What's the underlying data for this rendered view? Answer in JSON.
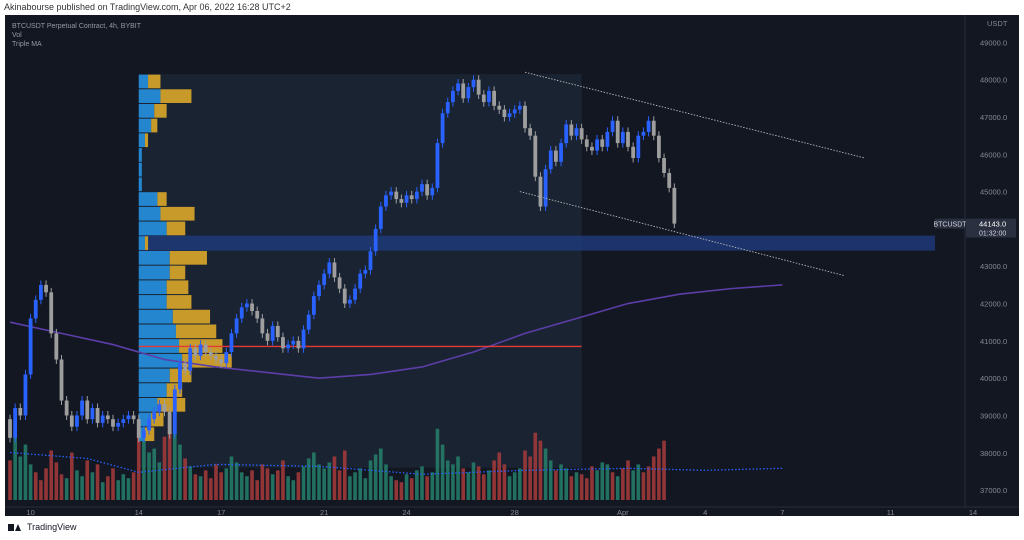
{
  "published_by": "Akinabourse published on TradingView.com, Apr 06, 2022 16:28 UTC+2",
  "legend": {
    "symbol_line": "BTCUSDT Perpetual Contract, 4h, BYBIT",
    "vol_label": "Vol",
    "ma_label": "Triple MA"
  },
  "footer": {
    "brand": "TradingView"
  },
  "colors": {
    "background": "#131722",
    "bull": "#2962ff",
    "bear": "#9e9e9e",
    "vol_up": "#26806b",
    "vol_down": "#a83b3b",
    "profile_up": "#2586d0",
    "profile_down": "#c79a2a",
    "poc_line": "#e53935",
    "ma_slow": "#5c3ea8",
    "ma_vol": "#2962ff",
    "zone": "#1e3a78",
    "channel": "#b8b8b8",
    "price_tag": "#2b3040",
    "axis_text": "#868993"
  },
  "chart_data": {
    "type": "candlestick",
    "symbol": "BTCUSDT",
    "timeframe": "4h",
    "exchange": "BYBIT",
    "y_axis": {
      "unit": "USDT",
      "ylim": [
        36600,
        49600
      ],
      "ticks": [
        "37000.0",
        "38000.0",
        "39000.0",
        "40000.0",
        "41000.0",
        "42000.0",
        "43000.0",
        "44000.0",
        "45000.0",
        "46000.0",
        "47000.0",
        "48000.0",
        "49000.0"
      ]
    },
    "x_axis": {
      "ticks": [
        {
          "label": "10",
          "bar": 4
        },
        {
          "label": "14",
          "bar": 25
        },
        {
          "label": "17",
          "bar": 41
        },
        {
          "label": "21",
          "bar": 61
        },
        {
          "label": "24",
          "bar": 77
        },
        {
          "label": "28",
          "bar": 98
        },
        {
          "label": "Apr",
          "bar": 119
        },
        {
          "label": "4",
          "bar": 135
        },
        {
          "label": "7",
          "bar": 150
        },
        {
          "label": "11",
          "bar": 171
        },
        {
          "label": "14",
          "bar": 187
        }
      ]
    },
    "candle_closes": [
      38400,
      39200,
      39000,
      40100,
      41600,
      42100,
      42500,
      42300,
      41200,
      40500,
      39400,
      39000,
      38700,
      39000,
      39400,
      38900,
      39200,
      38800,
      39000,
      38900,
      38700,
      38800,
      38900,
      39000,
      38900,
      38400,
      38600,
      38900,
      39100,
      39300,
      39100,
      38500,
      39700,
      40400,
      40200,
      40800,
      40600,
      40900,
      40700,
      40600,
      40500,
      40400,
      40700,
      41200,
      41600,
      41900,
      42000,
      41800,
      41600,
      41200,
      41000,
      41400,
      41100,
      40800,
      40900,
      41000,
      40800,
      41300,
      41700,
      42200,
      42500,
      42800,
      43100,
      42700,
      42400,
      42000,
      42100,
      42400,
      42800,
      42900,
      43400,
      44000,
      44600,
      44900,
      45000,
      44800,
      44700,
      44900,
      44800,
      45000,
      45200,
      44900,
      45100,
      46300,
      47100,
      47400,
      47700,
      47900,
      47500,
      47800,
      48000,
      47600,
      47400,
      47700,
      47300,
      47200,
      47000,
      47100,
      47200,
      47300,
      46700,
      46500,
      45400,
      44600,
      45600,
      46100,
      45800,
      46300,
      46800,
      46500,
      46700,
      46400,
      46200,
      46100,
      46400,
      46200,
      46600,
      46900,
      46300,
      46600,
      46200,
      45900,
      46500,
      46600,
      46900,
      46500,
      45900,
      45500,
      45100,
      44143
    ],
    "first_candle_open": 38900,
    "volume_max": 48,
    "volume": [
      {
        "v": 20,
        "up": false
      },
      {
        "v": 35,
        "up": true
      },
      {
        "v": 22,
        "up": true
      },
      {
        "v": 28,
        "up": true
      },
      {
        "v": 18,
        "up": true
      },
      {
        "v": 14,
        "up": false
      },
      {
        "v": 10,
        "up": false
      },
      {
        "v": 16,
        "up": false
      },
      {
        "v": 25,
        "up": false
      },
      {
        "v": 19,
        "up": false
      },
      {
        "v": 13,
        "up": false
      },
      {
        "v": 11,
        "up": true
      },
      {
        "v": 24,
        "up": false
      },
      {
        "v": 15,
        "up": true
      },
      {
        "v": 12,
        "up": true
      },
      {
        "v": 20,
        "up": false
      },
      {
        "v": 14,
        "up": true
      },
      {
        "v": 18,
        "up": false
      },
      {
        "v": 9,
        "up": true
      },
      {
        "v": 12,
        "up": false
      },
      {
        "v": 16,
        "up": false
      },
      {
        "v": 10,
        "up": true
      },
      {
        "v": 13,
        "up": true
      },
      {
        "v": 11,
        "up": true
      },
      {
        "v": 14,
        "up": false
      },
      {
        "v": 38,
        "up": false
      },
      {
        "v": 30,
        "up": true
      },
      {
        "v": 24,
        "up": true
      },
      {
        "v": 26,
        "up": true
      },
      {
        "v": 19,
        "up": true
      },
      {
        "v": 32,
        "up": false
      },
      {
        "v": 40,
        "up": false
      },
      {
        "v": 44,
        "up": true
      },
      {
        "v": 28,
        "up": true
      },
      {
        "v": 21,
        "up": false
      },
      {
        "v": 17,
        "up": true
      },
      {
        "v": 13,
        "up": false
      },
      {
        "v": 12,
        "up": true
      },
      {
        "v": 15,
        "up": false
      },
      {
        "v": 11,
        "up": false
      },
      {
        "v": 18,
        "up": false
      },
      {
        "v": 14,
        "up": false
      },
      {
        "v": 16,
        "up": true
      },
      {
        "v": 22,
        "up": true
      },
      {
        "v": 19,
        "up": true
      },
      {
        "v": 14,
        "up": true
      },
      {
        "v": 12,
        "up": true
      },
      {
        "v": 15,
        "up": false
      },
      {
        "v": 10,
        "up": false
      },
      {
        "v": 18,
        "up": false
      },
      {
        "v": 16,
        "up": false
      },
      {
        "v": 13,
        "up": true
      },
      {
        "v": 15,
        "up": false
      },
      {
        "v": 20,
        "up": false
      },
      {
        "v": 12,
        "up": true
      },
      {
        "v": 10,
        "up": true
      },
      {
        "v": 14,
        "up": false
      },
      {
        "v": 17,
        "up": true
      },
      {
        "v": 21,
        "up": true
      },
      {
        "v": 24,
        "up": true
      },
      {
        "v": 18,
        "up": true
      },
      {
        "v": 16,
        "up": true
      },
      {
        "v": 19,
        "up": true
      },
      {
        "v": 22,
        "up": false
      },
      {
        "v": 15,
        "up": false
      },
      {
        "v": 25,
        "up": false
      },
      {
        "v": 12,
        "up": true
      },
      {
        "v": 14,
        "up": true
      },
      {
        "v": 16,
        "up": true
      },
      {
        "v": 11,
        "up": true
      },
      {
        "v": 20,
        "up": true
      },
      {
        "v": 23,
        "up": true
      },
      {
        "v": 26,
        "up": true
      },
      {
        "v": 18,
        "up": true
      },
      {
        "v": 12,
        "up": true
      },
      {
        "v": 10,
        "up": false
      },
      {
        "v": 9,
        "up": false
      },
      {
        "v": 13,
        "up": true
      },
      {
        "v": 11,
        "up": false
      },
      {
        "v": 15,
        "up": true
      },
      {
        "v": 17,
        "up": true
      },
      {
        "v": 12,
        "up": false
      },
      {
        "v": 14,
        "up": true
      },
      {
        "v": 36,
        "up": true
      },
      {
        "v": 28,
        "up": true
      },
      {
        "v": 20,
        "up": true
      },
      {
        "v": 18,
        "up": true
      },
      {
        "v": 22,
        "up": true
      },
      {
        "v": 16,
        "up": false
      },
      {
        "v": 14,
        "up": true
      },
      {
        "v": 19,
        "up": true
      },
      {
        "v": 17,
        "up": false
      },
      {
        "v": 13,
        "up": false
      },
      {
        "v": 15,
        "up": true
      },
      {
        "v": 20,
        "up": false
      },
      {
        "v": 24,
        "up": false
      },
      {
        "v": 18,
        "up": false
      },
      {
        "v": 12,
        "up": true
      },
      {
        "v": 14,
        "up": true
      },
      {
        "v": 16,
        "up": true
      },
      {
        "v": 25,
        "up": false
      },
      {
        "v": 22,
        "up": false
      },
      {
        "v": 34,
        "up": false
      },
      {
        "v": 30,
        "up": false
      },
      {
        "v": 26,
        "up": true
      },
      {
        "v": 20,
        "up": true
      },
      {
        "v": 15,
        "up": false
      },
      {
        "v": 18,
        "up": true
      },
      {
        "v": 16,
        "up": true
      },
      {
        "v": 12,
        "up": false
      },
      {
        "v": 14,
        "up": true
      },
      {
        "v": 13,
        "up": false
      },
      {
        "v": 11,
        "up": false
      },
      {
        "v": 17,
        "up": false
      },
      {
        "v": 15,
        "up": true
      },
      {
        "v": 19,
        "up": true
      },
      {
        "v": 18,
        "up": true
      },
      {
        "v": 14,
        "up": false
      },
      {
        "v": 12,
        "up": true
      },
      {
        "v": 16,
        "up": false
      },
      {
        "v": 20,
        "up": false
      },
      {
        "v": 15,
        "up": true
      },
      {
        "v": 18,
        "up": true
      },
      {
        "v": 14,
        "up": false
      },
      {
        "v": 17,
        "up": false
      },
      {
        "v": 22,
        "up": false
      },
      {
        "v": 26,
        "up": false
      },
      {
        "v": 30,
        "up": false
      }
    ],
    "ma_slow": [
      {
        "bar": 0,
        "y": 41500
      },
      {
        "bar": 10,
        "y": 41200
      },
      {
        "bar": 20,
        "y": 40900
      },
      {
        "bar": 30,
        "y": 40500
      },
      {
        "bar": 40,
        "y": 40300
      },
      {
        "bar": 50,
        "y": 40150
      },
      {
        "bar": 60,
        "y": 40000
      },
      {
        "bar": 70,
        "y": 40100
      },
      {
        "bar": 80,
        "y": 40300
      },
      {
        "bar": 90,
        "y": 40700
      },
      {
        "bar": 100,
        "y": 41200
      },
      {
        "bar": 110,
        "y": 41600
      },
      {
        "bar": 120,
        "y": 42000
      },
      {
        "bar": 130,
        "y": 42250
      },
      {
        "bar": 140,
        "y": 42400
      },
      {
        "bar": 150,
        "y": 42500
      }
    ],
    "volume_ma": [
      {
        "bar": 0,
        "v": 24
      },
      {
        "bar": 15,
        "v": 21
      },
      {
        "bar": 25,
        "v": 14
      },
      {
        "bar": 40,
        "v": 18
      },
      {
        "bar": 60,
        "v": 17
      },
      {
        "bar": 80,
        "v": 13
      },
      {
        "bar": 100,
        "v": 15
      },
      {
        "bar": 120,
        "v": 16
      },
      {
        "bar": 135,
        "v": 15
      },
      {
        "bar": 150,
        "v": 16
      }
    ],
    "volume_profile": {
      "start_bar": 25,
      "price_top": 48150,
      "price_bottom": 38300,
      "rows": [
        {
          "up": 3,
          "down": 4
        },
        {
          "up": 7,
          "down": 10
        },
        {
          "up": 5,
          "down": 4
        },
        {
          "up": 4,
          "down": 2
        },
        {
          "up": 2,
          "down": 1
        },
        {
          "up": 1,
          "down": 0
        },
        {
          "up": 1,
          "down": 0
        },
        {
          "up": 1,
          "down": 0
        },
        {
          "up": 6,
          "down": 3
        },
        {
          "up": 7,
          "down": 11
        },
        {
          "up": 9,
          "down": 6
        },
        {
          "up": 2,
          "down": 1
        },
        {
          "up": 10,
          "down": 12
        },
        {
          "up": 10,
          "down": 5
        },
        {
          "up": 9,
          "down": 7
        },
        {
          "up": 9,
          "down": 8
        },
        {
          "up": 11,
          "down": 12
        },
        {
          "up": 12,
          "down": 13
        },
        {
          "up": 13,
          "down": 14
        },
        {
          "up": 14,
          "down": 16
        },
        {
          "up": 10,
          "down": 7
        },
        {
          "up": 9,
          "down": 5
        },
        {
          "up": 6,
          "down": 9
        },
        {
          "up": 4,
          "down": 4
        },
        {
          "up": 2,
          "down": 3
        }
      ]
    },
    "poc_line": {
      "price": 40850,
      "from_bar": 25,
      "to_bar": 111
    },
    "value_area": {
      "from_bar": 25,
      "to_bar": 111,
      "price_top": 48150,
      "price_bottom": 37600
    },
    "support_zone": {
      "price_top": 43820,
      "price_bottom": 43420
    },
    "descending_channel": {
      "upper": [
        {
          "bar": 100,
          "y": 48200
        },
        {
          "bar": 166,
          "y": 45900
        }
      ],
      "lower": [
        {
          "bar": 99,
          "y": 45000
        },
        {
          "bar": 162,
          "y": 42750
        }
      ]
    },
    "last_price": {
      "symbol": "BTCUSDT",
      "price": "44143.0",
      "countdown": "01:32:00"
    }
  }
}
